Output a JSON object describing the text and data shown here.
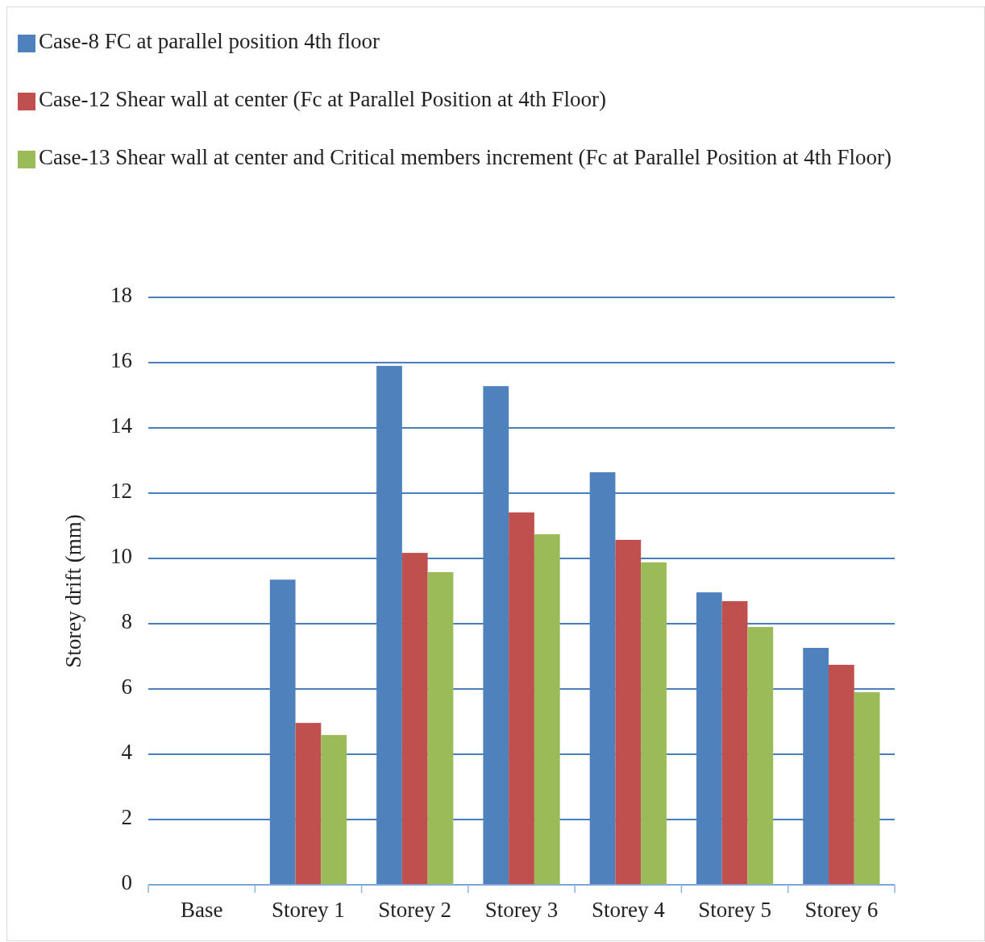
{
  "chart_data": {
    "type": "bar",
    "ylabel": "Storey drift (mm)",
    "categories": [
      "Base",
      "Storey 1",
      "Storey 2",
      "Storey 3",
      "Storey 4",
      "Storey 5",
      "Storey 6"
    ],
    "series": [
      {
        "name": "Case-8 FC at parallel position 4th floor",
        "color": "#4f81bd",
        "values": [
          0,
          9.35,
          15.9,
          15.28,
          12.64,
          8.96,
          7.26
        ]
      },
      {
        "name": "Case-12 Shear wall at center (Fc at Parallel Position at 4th Floor)",
        "color": "#c0504d",
        "values": [
          0,
          4.96,
          10.17,
          11.41,
          10.57,
          8.69,
          6.74
        ]
      },
      {
        "name": "Case-13 Shear wall at center and Critical members increment (Fc at Parallel Position at 4th Floor)",
        "color": "#9bbb59",
        "values": [
          0,
          4.59,
          9.58,
          10.74,
          9.88,
          7.9,
          5.9
        ]
      }
    ],
    "ylim": [
      0,
      18
    ],
    "yticks": [
      0,
      2,
      4,
      6,
      8,
      10,
      12,
      14,
      16,
      18
    ],
    "grid": "y",
    "legend": "top"
  }
}
